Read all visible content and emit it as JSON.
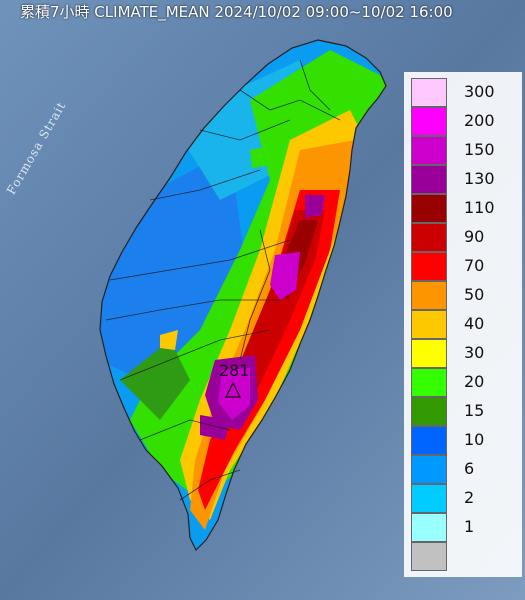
{
  "title": "累積7小時 CLIMATE_MEAN 2024/10/02 09:00~10/02 16:00",
  "strait_label": "Formosa Strait",
  "max_marker": "281",
  "legend": {
    "levels": [
      {
        "label": "300",
        "color": "#fdc8fd"
      },
      {
        "label": "200",
        "color": "#fd00fd"
      },
      {
        "label": "150",
        "color": "#cc00cc"
      },
      {
        "label": "130",
        "color": "#990099"
      },
      {
        "label": "110",
        "color": "#990000"
      },
      {
        "label": "90",
        "color": "#cc0000"
      },
      {
        "label": "70",
        "color": "#fd0000"
      },
      {
        "label": "50",
        "color": "#fd9500"
      },
      {
        "label": "40",
        "color": "#fdc800"
      },
      {
        "label": "30",
        "color": "#ffff00"
      },
      {
        "label": "20",
        "color": "#33ff00"
      },
      {
        "label": "15",
        "color": "#339900"
      },
      {
        "label": "10",
        "color": "#0065ff"
      },
      {
        "label": "6",
        "color": "#0099ff"
      },
      {
        "label": "2",
        "color": "#00ccff"
      },
      {
        "label": "1",
        "color": "#99ffff"
      },
      {
        "label": "",
        "color": "#c1c1c1"
      }
    ]
  }
}
